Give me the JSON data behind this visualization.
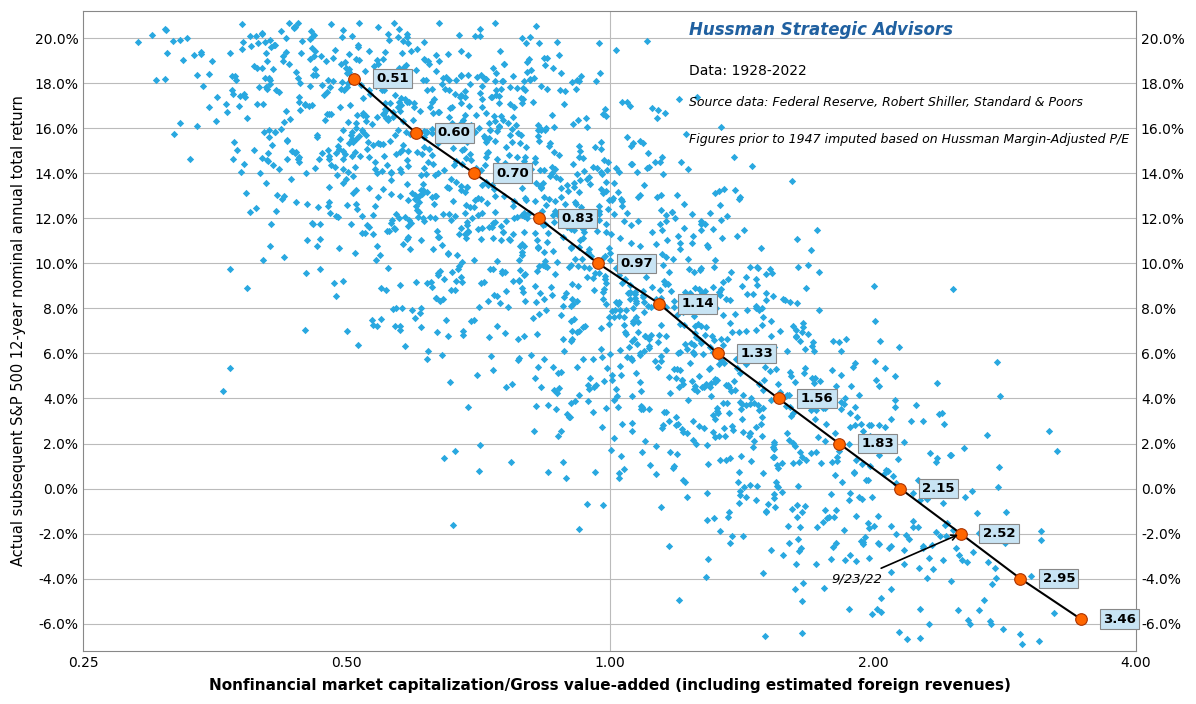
{
  "xlabel": "Nonfinancial market capitalization/Gross value-added (including estimated foreign revenues)",
  "ylabel": "Actual subsequent S&P 500 12-year nominal annual total return",
  "annotation_title": "Hussman Strategic Advisors",
  "annotation_line2": "Data: 1928-2022",
  "annotation_line3": "Source data: Federal Reserve, Robert Shiller, Standard & Poors",
  "annotation_line4": "Figures prior to 1947 imputed based on Hussman Margin-Adjusted P/E",
  "xlim_log": [
    -1.386,
    1.386
  ],
  "ylim": [
    -0.072,
    0.212
  ],
  "xticks": [
    0.25,
    0.5,
    1.0,
    2.0,
    4.0
  ],
  "xtick_labels": [
    "0.25",
    "0.50",
    "1.00",
    "2.00",
    "4.00"
  ],
  "yticks": [
    -0.06,
    -0.04,
    -0.02,
    0.0,
    0.02,
    0.04,
    0.06,
    0.08,
    0.1,
    0.12,
    0.14,
    0.16,
    0.18,
    0.2
  ],
  "ytick_labels": [
    "-6.0%",
    "-4.0%",
    "-2.0%",
    "0.0%",
    "2.0%",
    "4.0%",
    "6.0%",
    "8.0%",
    "10.0%",
    "12.0%",
    "14.0%",
    "16.0%",
    "18.0%",
    "20.0%"
  ],
  "scatter_color": "#29A8E0",
  "scatter_marker": "D",
  "scatter_size": 14,
  "line_points_x": [
    0.51,
    0.6,
    0.7,
    0.83,
    0.97,
    1.14,
    1.33,
    1.56,
    1.83,
    2.15,
    2.52,
    2.95,
    3.46
  ],
  "line_points_y": [
    0.182,
    0.158,
    0.14,
    0.12,
    0.1,
    0.082,
    0.06,
    0.04,
    0.02,
    0.0,
    -0.02,
    -0.04,
    -0.058
  ],
  "line_labels": [
    "0.51",
    "0.60",
    "0.70",
    "0.83",
    "0.97",
    "1.14",
    "1.33",
    "1.56",
    "1.83",
    "2.15",
    "2.52",
    "2.95",
    "3.46"
  ],
  "orange_color": "#FF6600",
  "annotation_color": "#2060A0",
  "seed": 42,
  "background_color": "#FFFFFF",
  "grid_color": "#BBBBBB",
  "n_scatter": 2500
}
